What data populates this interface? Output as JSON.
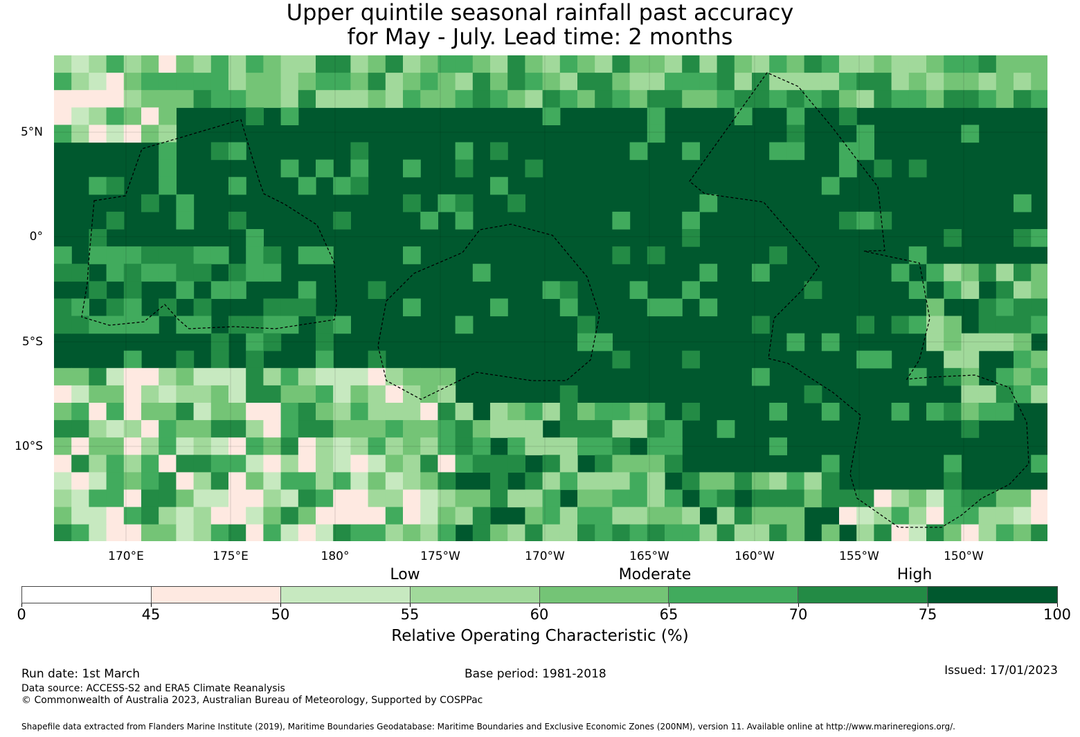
{
  "title": {
    "line1": "Upper quintile seasonal rainfall past accuracy",
    "line2": "for May - July. Lead time: 2 months"
  },
  "map": {
    "latitude_labels": [
      "5°N",
      "0°",
      "5°S",
      "10°S"
    ],
    "longitude_labels": [
      "170°E",
      "175°E",
      "180°",
      "175°W",
      "170°W",
      "165°W",
      "160°W",
      "155°W",
      "150°W"
    ],
    "dominant_color": "#00582e"
  },
  "colorbar": {
    "band_labels": [
      "Low",
      "Moderate",
      "High"
    ],
    "boundaries": [
      "0",
      "45",
      "50",
      "55",
      "60",
      "65",
      "70",
      "75",
      "100"
    ],
    "colors": [
      "#ffffff",
      "#fee9e1",
      "#c7e9c0",
      "#a1d99b",
      "#74c476",
      "#41ab5d",
      "#238b45",
      "#00582e"
    ],
    "title": "Relative Operating Characteristic (%)"
  },
  "footer": {
    "run_date": "Run date: 1st March",
    "base_period": "Base period: 1981-2018",
    "issued": "Issued: 17/01/2023",
    "data_source": "Data source: ACCESS-S2 and ERA5 Climate Reanalysis",
    "copyright": "© Commonwealth of Australia 2023, Australian Bureau of Meteorology, Supported by COSPPac",
    "shapefile": "Shapefile data extracted from Flanders Marine Institute (2019), Maritime Boundaries Geodatabase: Maritime Boundaries and Exclusive Economic Zones (200NM), version 11. Available online at http://www.marineregions.org/."
  }
}
